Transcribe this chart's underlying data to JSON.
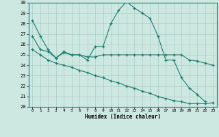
{
  "xlabel": "Humidex (Indice chaleur)",
  "xlim": [
    -0.5,
    23.5
  ],
  "ylim": [
    20,
    30
  ],
  "xticks": [
    0,
    1,
    2,
    3,
    4,
    5,
    6,
    7,
    8,
    9,
    10,
    11,
    12,
    13,
    14,
    15,
    16,
    17,
    18,
    19,
    20,
    21,
    22,
    23
  ],
  "yticks": [
    20,
    21,
    22,
    23,
    24,
    25,
    26,
    27,
    28,
    29,
    30
  ],
  "bg_color": "#cce8e0",
  "line_color": "#1a7a6e",
  "grid_color": "#aacec6",
  "lines": [
    {
      "x": [
        0,
        1,
        2,
        3,
        4,
        5,
        6,
        7,
        8,
        9,
        10,
        11,
        12,
        13,
        14,
        15,
        16,
        17,
        18,
        19,
        20,
        21,
        22,
        23
      ],
      "y": [
        28.3,
        26.8,
        25.5,
        24.7,
        25.3,
        25.0,
        25.0,
        24.5,
        25.8,
        25.8,
        28.0,
        29.3,
        30.1,
        29.5,
        29.0,
        28.5,
        26.8,
        24.5,
        24.5,
        22.8,
        21.8,
        21.2,
        20.5,
        null
      ]
    },
    {
      "x": [
        0,
        1,
        2,
        3,
        4,
        5,
        6,
        7,
        8,
        9,
        10,
        11,
        12,
        13,
        14,
        15,
        16,
        17,
        18,
        19,
        20,
        21,
        22,
        23
      ],
      "y": [
        26.8,
        25.5,
        25.3,
        24.7,
        25.2,
        25.0,
        25.0,
        24.8,
        24.8,
        25.0,
        25.0,
        25.0,
        25.0,
        25.0,
        25.0,
        25.0,
        25.0,
        25.0,
        25.0,
        25.0,
        24.5,
        24.4,
        24.2,
        24.0
      ]
    },
    {
      "x": [
        0,
        1,
        2,
        3,
        4,
        5,
        6,
        7,
        8,
        9,
        10,
        11,
        12,
        13,
        14,
        15,
        16,
        17,
        18,
        19,
        20,
        21,
        22,
        23
      ],
      "y": [
        25.5,
        25.0,
        24.5,
        24.2,
        24.0,
        23.8,
        23.5,
        23.3,
        23.0,
        22.8,
        22.5,
        22.3,
        22.0,
        21.8,
        21.5,
        21.3,
        21.0,
        20.8,
        20.6,
        20.5,
        20.3,
        20.3,
        20.3,
        20.4
      ]
    }
  ]
}
